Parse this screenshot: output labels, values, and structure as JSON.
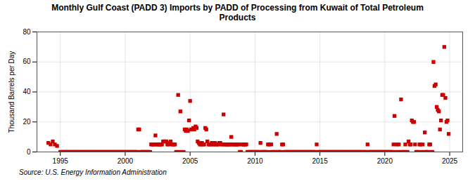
{
  "chart_data": {
    "type": "scatter",
    "title": "Monthly Gulf Coast (PADD 3) Imports by PADD of Processing from Kuwait of Total Petroleum\nProducts",
    "ylabel": "Thousand Barrels per Day",
    "caption": "Source: U.S. Energy Information Administration",
    "color": "#cc0000",
    "marker": "square",
    "grid": true,
    "xlim": [
      1993.2,
      2026.0
    ],
    "ylim": [
      0,
      80
    ],
    "xticks": [
      1995,
      2000,
      2005,
      2010,
      2015,
      2020,
      2025
    ],
    "yticks": [
      0,
      20,
      40,
      60,
      80
    ],
    "x": [
      1994.08,
      1994.25,
      1994.42,
      1994.58,
      1994.75,
      1995.0,
      1995.08,
      1995.17,
      1995.25,
      1995.33,
      1995.42,
      1995.5,
      1995.58,
      1995.67,
      1995.75,
      1995.83,
      1995.92,
      1996.0,
      1996.08,
      1996.17,
      1996.25,
      1996.33,
      1996.42,
      1996.5,
      1996.58,
      1996.67,
      1996.75,
      1996.83,
      1996.92,
      1997.0,
      1997.08,
      1997.17,
      1997.25,
      1997.33,
      1997.42,
      1997.5,
      1997.58,
      1997.67,
      1997.75,
      1997.83,
      1997.92,
      1998.0,
      1998.08,
      1998.17,
      1998.25,
      1998.33,
      1998.42,
      1998.5,
      1998.58,
      1998.67,
      1998.75,
      1998.83,
      1998.92,
      1999.0,
      1999.08,
      1999.17,
      1999.25,
      1999.33,
      1999.42,
      1999.5,
      1999.58,
      1999.67,
      1999.75,
      1999.83,
      1999.92,
      2000.0,
      2000.08,
      2000.17,
      2000.25,
      2000.33,
      2000.42,
      2000.5,
      2000.58,
      2000.67,
      2000.75,
      2000.83,
      2000.92,
      2001.0,
      2001.08,
      2001.17,
      2001.25,
      2001.33,
      2001.42,
      2001.5,
      2001.58,
      2001.67,
      2001.75,
      2001.83,
      2001.92,
      2002.0,
      2002.08,
      2002.17,
      2002.25,
      2002.33,
      2002.42,
      2002.5,
      2002.58,
      2002.67,
      2002.75,
      2002.83,
      2002.92,
      2003.0,
      2003.08,
      2003.17,
      2003.25,
      2003.33,
      2003.42,
      2003.5,
      2003.58,
      2003.67,
      2003.75,
      2003.83,
      2003.92,
      2004.0,
      2004.08,
      2004.17,
      2004.25,
      2004.33,
      2004.5,
      2004.58,
      2004.67,
      2004.75,
      2004.83,
      2004.92,
      2005.0,
      2005.08,
      2005.17,
      2005.25,
      2005.33,
      2005.42,
      2005.5,
      2005.58,
      2005.67,
      2005.75,
      2005.83,
      2005.92,
      2006.0,
      2006.08,
      2006.17,
      2006.25,
      2006.33,
      2006.42,
      2006.5,
      2006.58,
      2006.67,
      2006.75,
      2006.83,
      2006.92,
      2007.0,
      2007.08,
      2007.17,
      2007.25,
      2007.33,
      2007.42,
      2007.5,
      2007.58,
      2007.67,
      2007.75,
      2007.83,
      2007.92,
      2008.0,
      2008.08,
      2008.17,
      2008.25,
      2008.33,
      2008.42,
      2008.5,
      2008.58,
      2008.67,
      2008.75,
      2008.83,
      2008.92,
      2009.0,
      2009.08,
      2009.17,
      2009.25,
      2009.33,
      2009.42,
      2009.5,
      2009.58,
      2009.67,
      2009.75,
      2009.83,
      2009.92,
      2010.0,
      2010.08,
      2010.17,
      2010.25,
      2010.33,
      2010.42,
      2010.5,
      2010.58,
      2010.67,
      2010.75,
      2010.83,
      2010.92,
      2011.0,
      2011.08,
      2011.17,
      2011.25,
      2011.33,
      2011.42,
      2011.5,
      2011.58,
      2011.67,
      2011.75,
      2011.83,
      2011.92,
      2012.0,
      2012.08,
      2012.17,
      2012.25,
      2012.33,
      2012.42,
      2012.5,
      2012.58,
      2012.67,
      2012.75,
      2012.83,
      2012.92,
      2013.0,
      2013.08,
      2013.17,
      2013.25,
      2013.33,
      2013.42,
      2013.5,
      2013.58,
      2013.67,
      2013.75,
      2013.83,
      2013.92,
      2014.0,
      2014.08,
      2014.17,
      2014.25,
      2014.33,
      2014.42,
      2014.5,
      2014.58,
      2014.67,
      2014.75,
      2014.83,
      2014.92,
      2015.0,
      2015.08,
      2015.17,
      2015.25,
      2015.33,
      2015.42,
      2015.5,
      2015.58,
      2015.67,
      2015.75,
      2015.83,
      2015.92,
      2016.0,
      2016.08,
      2016.17,
      2016.25,
      2016.33,
      2016.42,
      2016.5,
      2016.58,
      2016.67,
      2016.75,
      2016.83,
      2016.92,
      2017.0,
      2017.08,
      2017.17,
      2017.25,
      2017.33,
      2017.42,
      2017.5,
      2017.58,
      2017.67,
      2017.75,
      2017.83,
      2017.92,
      2018.0,
      2018.08,
      2018.17,
      2018.25,
      2018.33,
      2018.42,
      2018.5,
      2018.58,
      2018.67,
      2018.75,
      2018.83,
      2018.92,
      2019.0,
      2019.08,
      2019.17,
      2019.25,
      2019.33,
      2019.42,
      2019.5,
      2019.58,
      2019.67,
      2019.75,
      2019.83,
      2019.92,
      2020.0,
      2020.08,
      2020.17,
      2020.25,
      2020.33,
      2020.42,
      2020.5,
      2020.58,
      2020.67,
      2020.75,
      2020.83,
      2020.92,
      2021.0,
      2021.08,
      2021.17,
      2021.25,
      2021.33,
      2021.42,
      2021.5,
      2021.58,
      2021.67,
      2021.75,
      2021.83,
      2021.92,
      2022.0,
      2022.08,
      2022.17,
      2022.25,
      2022.33,
      2022.42,
      2022.5,
      2022.58,
      2022.67,
      2022.75,
      2022.83,
      2022.92,
      2023.0,
      2023.08,
      2023.17,
      2023.25,
      2023.33,
      2023.42,
      2023.5,
      2023.58,
      2023.67,
      2023.75,
      2023.83,
      2023.92,
      2024.0,
      2024.08,
      2024.17,
      2024.25,
      2024.33,
      2024.42,
      2024.5,
      2024.58,
      2024.67,
      2024.75,
      2024.83,
      2024.92
    ],
    "values": [
      6,
      5,
      7,
      5,
      4,
      0,
      0,
      0,
      0,
      0,
      0,
      0,
      0,
      0,
      0,
      0,
      0,
      0,
      0,
      0,
      0,
      0,
      0,
      0,
      0,
      0,
      0,
      0,
      0,
      0,
      0,
      0,
      0,
      0,
      0,
      0,
      0,
      0,
      0,
      0,
      0,
      0,
      0,
      0,
      0,
      0,
      0,
      0,
      0,
      0,
      0,
      0,
      0,
      0,
      0,
      0,
      0,
      0,
      0,
      0,
      0,
      0,
      0,
      0,
      0,
      0,
      0,
      0,
      0,
      0,
      0,
      0,
      0,
      0,
      0,
      0,
      0,
      15,
      15,
      0,
      0,
      0,
      0,
      0,
      0,
      0,
      0,
      0,
      0,
      5,
      5,
      5,
      5,
      11,
      5,
      5,
      5,
      5,
      5,
      5,
      7,
      7,
      7,
      7,
      5,
      5,
      6,
      7,
      5,
      5,
      5,
      5,
      0,
      0,
      38,
      0,
      27,
      0,
      0,
      15,
      14,
      15,
      14,
      21,
      34,
      15,
      15,
      16,
      15,
      17,
      16,
      7,
      6,
      5,
      5,
      6,
      5,
      5,
      16,
      15,
      7,
      5,
      5,
      5,
      6,
      5,
      5,
      6,
      5,
      5,
      5,
      6,
      6,
      5,
      5,
      25,
      5,
      5,
      5,
      5,
      5,
      5,
      10,
      5,
      5,
      5,
      5,
      5,
      5,
      5,
      0,
      0,
      5,
      5,
      5,
      5,
      5,
      0,
      0,
      0,
      0,
      0,
      0,
      0,
      0,
      0,
      0,
      0,
      0,
      6,
      0,
      0,
      0,
      0,
      0,
      0,
      5,
      5,
      0,
      5,
      0,
      0,
      0,
      0,
      12,
      0,
      0,
      0,
      0,
      5,
      5,
      0,
      0,
      0,
      0,
      0,
      0,
      0,
      0,
      0,
      0,
      0,
      0,
      0,
      0,
      0,
      0,
      0,
      0,
      0,
      0,
      0,
      0,
      0,
      0,
      0,
      0,
      0,
      0,
      0,
      0,
      5,
      0,
      0,
      0,
      0,
      0,
      0,
      0,
      0,
      0,
      0,
      0,
      0,
      0,
      0,
      0,
      0,
      0,
      0,
      0,
      0,
      0,
      0,
      0,
      0,
      0,
      0,
      0,
      0,
      0,
      0,
      0,
      0,
      0,
      0,
      0,
      0,
      0,
      0,
      0,
      0,
      0,
      0,
      0,
      0,
      0,
      0,
      5,
      0,
      0,
      0,
      0,
      0,
      0,
      0,
      0,
      0,
      0,
      0,
      0,
      0,
      0,
      0,
      0,
      0,
      0,
      0,
      0,
      0,
      0,
      0,
      5,
      24,
      0,
      5,
      0,
      5,
      0,
      35,
      0,
      0,
      0,
      5,
      0,
      0,
      7,
      5,
      5,
      21,
      20,
      20,
      5,
      0,
      0,
      0,
      5,
      5,
      0,
      5,
      0,
      13,
      0,
      0,
      0,
      5,
      5,
      0,
      0,
      60,
      44,
      45,
      30,
      28,
      27,
      15,
      21,
      38,
      38,
      70,
      36,
      20,
      21,
      12
    ]
  }
}
